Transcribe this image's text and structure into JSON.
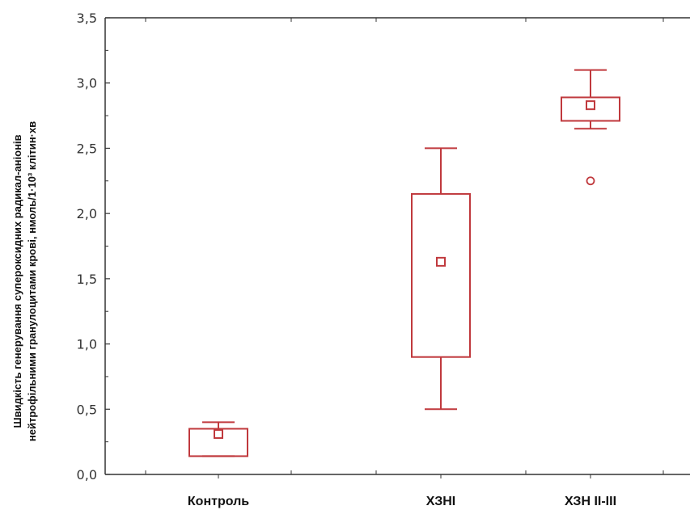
{
  "chart_data": {
    "type": "box",
    "title": "",
    "xlabel": "",
    "ylabel": {
      "line1": "Швидкість генерування супероксидних радикал-аніонів",
      "line2": "нейтрофільними гранулоцитами крові, нмоль/1·10³ клітин·хв"
    },
    "ylim": [
      0,
      3.5
    ],
    "yticks": [
      "0,0",
      "0,5",
      "1,0",
      "1,5",
      "2,0",
      "2,5",
      "3,0",
      "3,5"
    ],
    "categories": [
      "Контроль",
      "ХЗНІ",
      "ХЗН ІІ-ІІІ"
    ],
    "boxes": [
      {
        "category": "Контроль",
        "whisker_low": 0.14,
        "q1": 0.14,
        "median": 0.31,
        "q3": 0.35,
        "whisker_high": 0.4,
        "outliers": []
      },
      {
        "category": "ХЗНІ",
        "whisker_low": 0.5,
        "q1": 0.9,
        "median": 1.63,
        "q3": 2.15,
        "whisker_high": 2.5,
        "outliers": []
      },
      {
        "category": "ХЗН ІІ-ІІІ",
        "whisker_low": 2.65,
        "q1": 2.71,
        "median": 2.83,
        "q3": 2.89,
        "whisker_high": 3.1,
        "outliers": [
          2.25
        ]
      }
    ],
    "grid": false,
    "legend": "none",
    "colors": {
      "box": "#c0393d",
      "axis": "#333333"
    }
  }
}
